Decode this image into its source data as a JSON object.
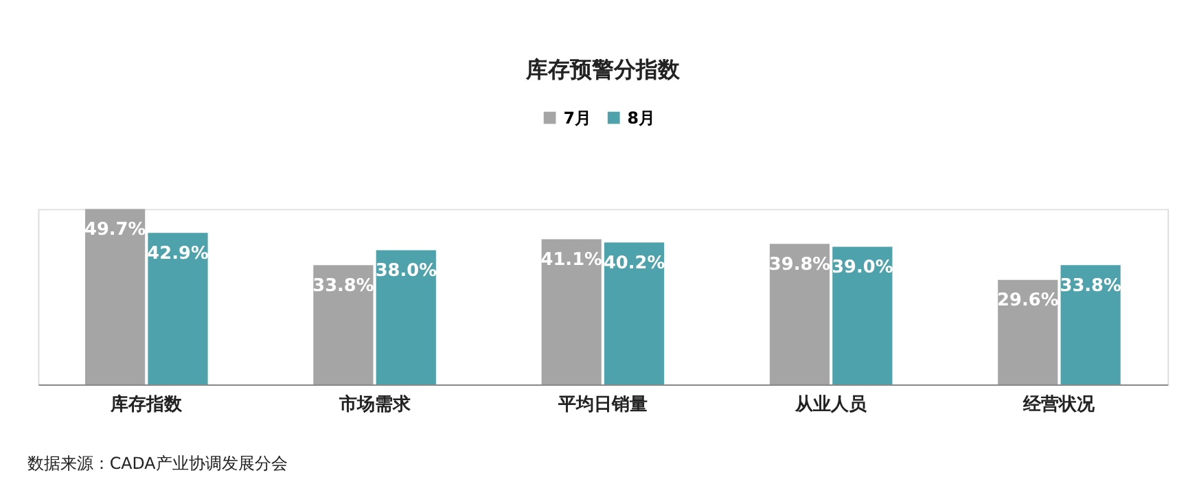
{
  "chart_data": {
    "type": "bar",
    "title": "库存预警分指数",
    "categories": [
      "库存指数",
      "市场需求",
      "平均日销量",
      "从业人员",
      "经营状况"
    ],
    "series": [
      {
        "name": "7月",
        "color": "#a5a5a5",
        "values": [
          49.7,
          33.8,
          41.1,
          39.8,
          29.6
        ],
        "value_labels": [
          "49.7%",
          "33.8%",
          "41.1%",
          "39.8%",
          "29.6%"
        ]
      },
      {
        "name": "8月",
        "color": "#4ea2ac",
        "values": [
          42.9,
          38.0,
          40.2,
          39.0,
          33.8
        ],
        "value_labels": [
          "42.9%",
          "38.0%",
          "40.2%",
          "39.0%",
          "33.8%"
        ]
      }
    ],
    "legend": "top",
    "grid": false,
    "annotations": [
      "数据来源：CADA产业协调发展分会"
    ]
  }
}
